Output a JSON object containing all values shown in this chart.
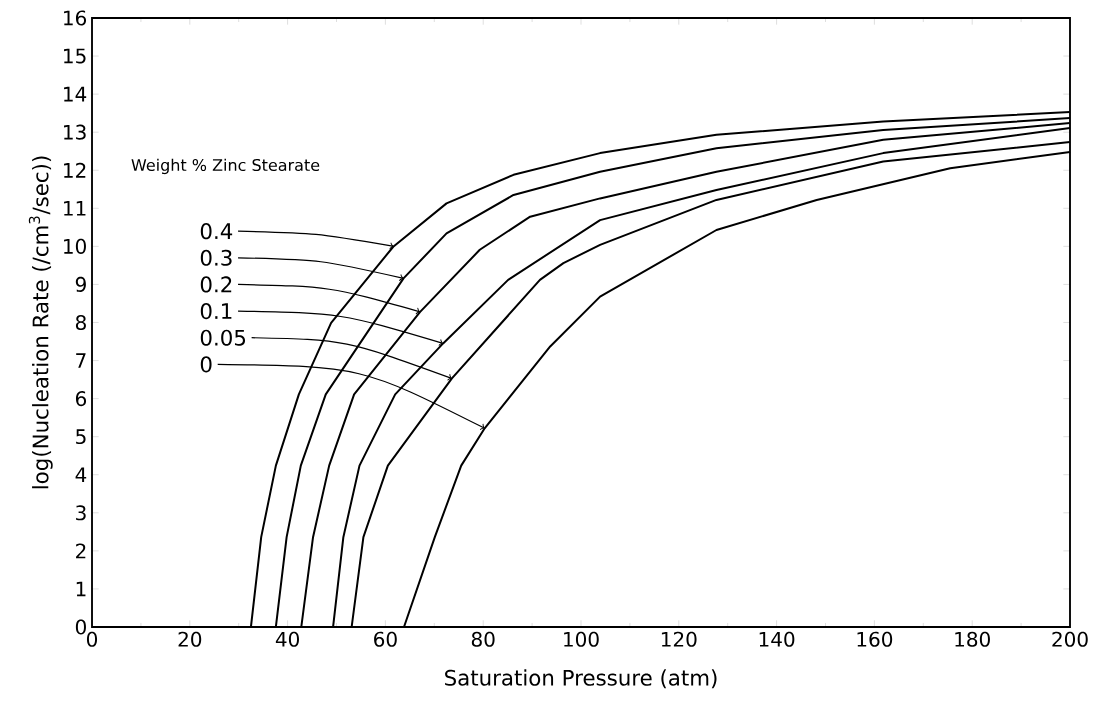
{
  "chart_data": {
    "type": "line",
    "xlabel": "Saturation Pressure (atm)",
    "ylabel": "log(Nucleation Rate (/cm$^{3}$/sec))",
    "legend_title": "Weight % Zinc Stearate",
    "xlim": [
      0,
      200
    ],
    "ylim": [
      0,
      16
    ],
    "xticks": [
      0,
      20,
      40,
      60,
      80,
      100,
      120,
      140,
      160,
      180,
      200
    ],
    "yticks": [
      0,
      1,
      2,
      3,
      4,
      5,
      6,
      7,
      8,
      9,
      10,
      11,
      12,
      13,
      14,
      15,
      16
    ],
    "marker": "none",
    "line_style": "solid",
    "series": [
      {
        "name": "0.4",
        "color": "#000000",
        "x": [
          32.5,
          34.6,
          37.6,
          42.3,
          48.9,
          61.6,
          72.5,
          86.2,
          103.9,
          127.7,
          161.8,
          200
        ],
        "values": [
          0,
          2.36,
          4.24,
          6.11,
          7.99,
          9.99,
          11.13,
          11.88,
          12.45,
          12.93,
          13.28,
          13.53
        ]
      },
      {
        "name": "0.3",
        "color": "#000000",
        "x": [
          37.6,
          39.8,
          42.7,
          47.8,
          63.7,
          72.5,
          86.2,
          103.9,
          127.7,
          161.8,
          200
        ],
        "values": [
          0,
          2.36,
          4.24,
          6.11,
          9.16,
          10.34,
          11.35,
          11.96,
          12.58,
          13.06,
          13.37
        ]
      },
      {
        "name": "0.2",
        "color": "#000000",
        "x": [
          42.8,
          45.2,
          48.5,
          53.6,
          67.1,
          79.3,
          89.6,
          103.9,
          127.7,
          161.8,
          200
        ],
        "values": [
          0,
          2.36,
          4.24,
          6.11,
          8.28,
          9.91,
          10.78,
          11.26,
          11.96,
          12.8,
          13.24
        ]
      },
      {
        "name": "0.1",
        "color": "#000000",
        "x": [
          49.3,
          51.4,
          54.7,
          62.0,
          71.8,
          85.1,
          103.9,
          127.7,
          161.8,
          200
        ],
        "values": [
          0,
          2.36,
          4.24,
          6.11,
          7.45,
          9.12,
          10.69,
          11.48,
          12.45,
          13.11
        ]
      },
      {
        "name": "0.05",
        "color": "#000000",
        "x": [
          53.1,
          55.5,
          60.5,
          73.6,
          91.6,
          96.4,
          103.9,
          127.7,
          161.8,
          200
        ],
        "values": [
          0,
          2.36,
          4.24,
          6.53,
          9.12,
          9.56,
          10.04,
          11.22,
          12.23,
          12.74
        ]
      },
      {
        "name": "0",
        "color": "#000000",
        "x": [
          63.8,
          70.1,
          75.5,
          80.3,
          93.7,
          103.9,
          127.7,
          148.2,
          175.5,
          200
        ],
        "values": [
          0,
          2.36,
          4.24,
          5.22,
          7.37,
          8.68,
          10.43,
          11.22,
          12.05,
          12.48
        ]
      }
    ]
  }
}
